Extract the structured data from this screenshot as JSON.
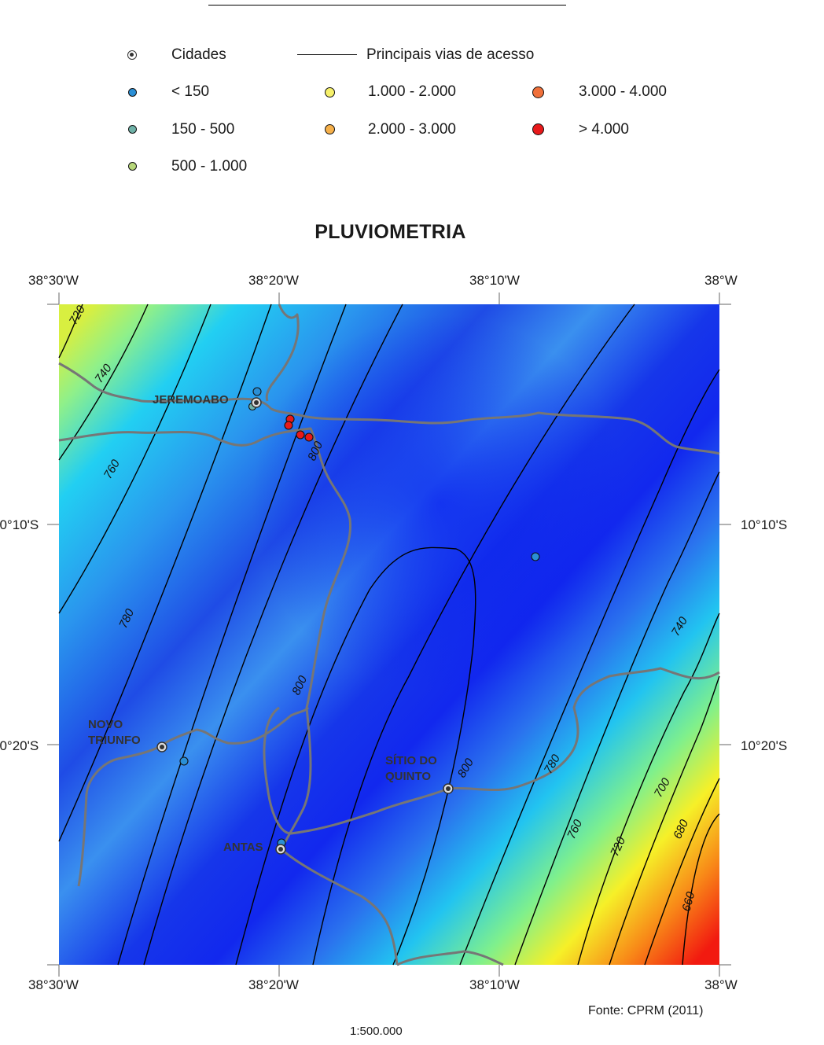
{
  "legend": {
    "cities_label": "Cidades",
    "roads_label": "Principais vias de acesso",
    "classes": [
      {
        "label": "< 150",
        "color": "#2a8fd6"
      },
      {
        "label": "150 - 500",
        "color": "#6fb2a8"
      },
      {
        "label": "500 - 1.000",
        "color": "#b7d77a"
      },
      {
        "label": "1.000 - 2.000",
        "color": "#f6f06a"
      },
      {
        "label": "2.000 - 3.000",
        "color": "#f6b04a"
      },
      {
        "label": "3.000 - 4.000",
        "color": "#f0703a"
      },
      {
        "label": "> 4.000",
        "color": "#e8191a"
      }
    ]
  },
  "map": {
    "title": "PLUVIOMETRIA",
    "lon_labels": [
      "38°30'W",
      "38°20'W",
      "38°10'W",
      "38°W"
    ],
    "lat_labels": [
      "10°10'S",
      "10°20'S"
    ],
    "cities": [
      {
        "name": "JEREMOABO",
        "lines": [
          "JEREMOABO"
        ]
      },
      {
        "name": "NOVO TRIUNFO",
        "lines": [
          "NOVO",
          "TRIUNFO"
        ]
      },
      {
        "name": "SÍTIO DO QUINTO",
        "lines": [
          "SÍTIO DO",
          "QUINTO"
        ]
      },
      {
        "name": "ANTAS",
        "lines": [
          "ANTAS"
        ]
      }
    ],
    "contour_labels": [
      "720",
      "740",
      "760",
      "780",
      "800",
      "800",
      "800",
      "780",
      "760",
      "740",
      "720",
      "700",
      "680",
      "660"
    ],
    "source": "Fonte: CPRM (2011)",
    "scale": "1:500.000"
  }
}
